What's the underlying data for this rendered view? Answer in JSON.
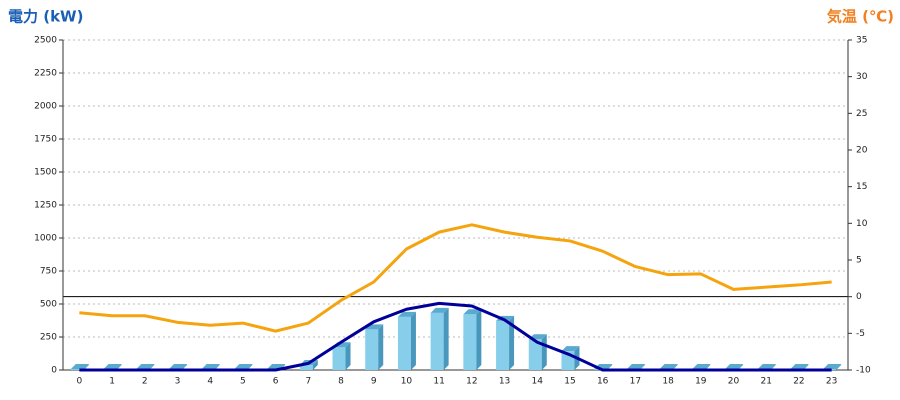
{
  "chart_data": {
    "type": "combo",
    "y_label": "電力 (kW)",
    "y2_label": "気温 (℃)",
    "categories": [
      "0",
      "1",
      "2",
      "3",
      "4",
      "5",
      "6",
      "7",
      "8",
      "9",
      "10",
      "11",
      "12",
      "13",
      "14",
      "15",
      "16",
      "17",
      "18",
      "19",
      "20",
      "21",
      "22",
      "23"
    ],
    "ylim": [
      0,
      2500
    ],
    "yticks": [
      0,
      250,
      500,
      750,
      1000,
      1250,
      1500,
      1750,
      2000,
      2250,
      2500
    ],
    "y2lim": [
      -10,
      35
    ],
    "y2ticks": [
      -10,
      -5,
      0,
      5,
      10,
      15,
      20,
      25,
      30,
      35
    ],
    "grid": true,
    "series": [
      {
        "type": "bar",
        "color": "#87ceeb",
        "values": [
          0,
          0,
          0,
          0,
          0,
          0,
          0,
          30,
          165,
          300,
          395,
          425,
          415,
          365,
          225,
          135,
          0,
          0,
          0,
          0,
          0,
          0,
          0,
          0
        ]
      },
      {
        "type": "line",
        "color": "#000099",
        "values": [
          0,
          0,
          0,
          0,
          0,
          0,
          0,
          50,
          210,
          365,
          460,
          505,
          485,
          380,
          210,
          115,
          0,
          0,
          0,
          0,
          0,
          0,
          0,
          0
        ]
      },
      {
        "type": "line",
        "color": "#f5a30f",
        "axis": "y2",
        "values": [
          -2.2,
          -2.6,
          -2.6,
          -3.5,
          -3.9,
          -3.6,
          -4.7,
          -3.6,
          -0.5,
          2.0,
          6.5,
          8.8,
          9.8,
          8.8,
          8.1,
          7.6,
          6.2,
          4.1,
          3.0,
          3.1,
          1.0,
          1.3,
          1.6,
          2.0
        ]
      }
    ]
  }
}
